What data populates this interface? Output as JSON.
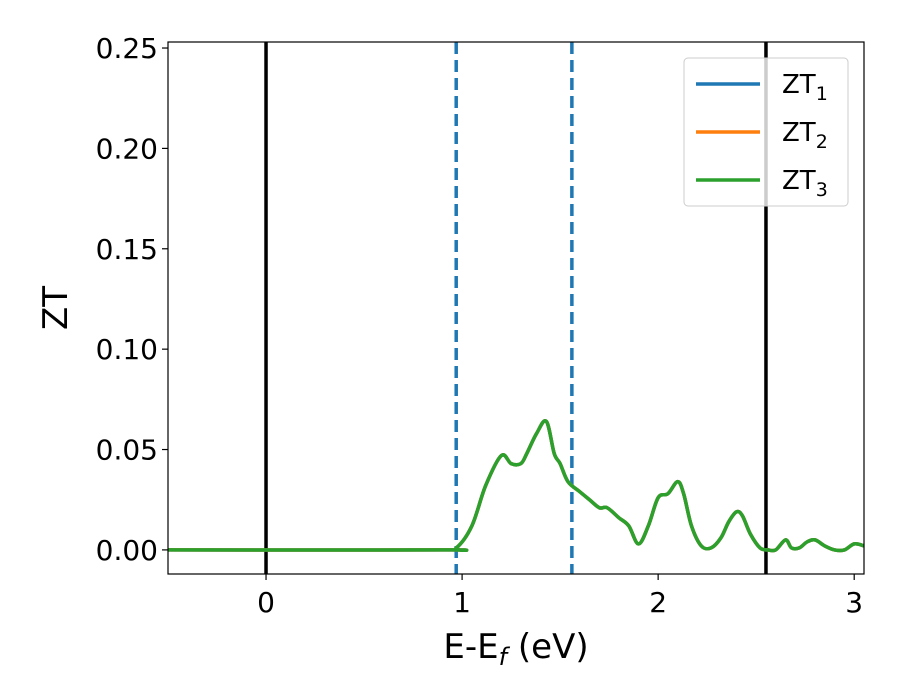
{
  "chart_data": {
    "type": "line",
    "title": "",
    "xlabel": {
      "main": "E-E",
      "sub": "f",
      "suffix": " (eV)"
    },
    "ylabel": "ZT",
    "xlim": [
      -0.5,
      3.05
    ],
    "ylim": [
      -0.012,
      0.253
    ],
    "x_ticks": [
      0,
      1,
      2,
      3
    ],
    "x_tick_labels": [
      "0",
      "1",
      "2",
      "3"
    ],
    "y_ticks": [
      0.0,
      0.05,
      0.1,
      0.15,
      0.2,
      0.25
    ],
    "y_tick_labels": [
      "0.00",
      "0.05",
      "0.10",
      "0.15",
      "0.20",
      "0.25"
    ],
    "grid": false,
    "legend_position": "top-right",
    "vertical_lines": [
      {
        "x": 0.0,
        "style": "solid",
        "color": "#000000"
      },
      {
        "x": 2.55,
        "style": "solid",
        "color": "#000000"
      },
      {
        "x": 0.97,
        "style": "dashed",
        "color": "#1f77b4"
      },
      {
        "x": 1.56,
        "style": "dashed",
        "color": "#1f77b4"
      }
    ],
    "series": [
      {
        "name": "ZT",
        "name_sub": "1",
        "color": "#1f77b4",
        "x": [
          -0.5,
          0.9,
          0.97,
          1.05,
          1.12,
          1.2,
          1.25,
          1.3,
          1.33,
          1.38,
          1.43,
          1.47,
          1.5,
          1.54,
          1.6,
          1.65,
          1.7,
          1.74,
          1.8,
          1.85,
          1.9,
          1.95,
          2.0,
          2.05,
          2.1,
          2.13,
          2.17,
          2.22,
          2.27,
          2.32,
          2.36,
          2.4,
          2.43,
          2.47,
          2.52,
          2.56,
          2.6,
          2.65,
          2.68,
          2.72,
          2.76,
          2.8,
          2.85,
          2.9,
          2.95,
          3.0,
          3.05
        ],
        "y": [
          0.0,
          0.0,
          0.001,
          0.012,
          0.032,
          0.047,
          0.043,
          0.043,
          0.048,
          0.058,
          0.064,
          0.048,
          0.043,
          0.034,
          0.029,
          0.025,
          0.021,
          0.021,
          0.016,
          0.012,
          0.003,
          0.012,
          0.026,
          0.028,
          0.034,
          0.028,
          0.012,
          0.002,
          0.001,
          0.006,
          0.014,
          0.019,
          0.017,
          0.008,
          0.001,
          0.0,
          0.0,
          0.005,
          0.001,
          0.001,
          0.004,
          0.005,
          0.002,
          0.0,
          0.0,
          0.003,
          0.002
        ]
      },
      {
        "name": "ZT",
        "name_sub": "2",
        "color": "#ff7f0e",
        "x": [
          -0.5,
          0.9,
          0.97,
          1.05,
          1.12,
          1.2,
          1.25,
          1.3,
          1.33,
          1.38,
          1.43,
          1.47,
          1.5,
          1.54,
          1.6,
          1.65,
          1.7,
          1.74,
          1.8,
          1.85,
          1.9,
          1.95,
          2.0,
          2.05,
          2.1,
          2.13,
          2.17,
          2.22,
          2.27,
          2.32,
          2.36,
          2.4,
          2.43,
          2.47,
          2.52,
          2.56,
          2.6,
          2.65,
          2.68,
          2.72,
          2.76,
          2.8,
          2.85,
          2.9,
          2.95,
          3.0,
          3.05
        ],
        "y": [
          0.0,
          0.0,
          0.001,
          0.012,
          0.032,
          0.047,
          0.043,
          0.043,
          0.048,
          0.058,
          0.064,
          0.048,
          0.043,
          0.034,
          0.029,
          0.025,
          0.021,
          0.021,
          0.016,
          0.012,
          0.003,
          0.012,
          0.026,
          0.028,
          0.034,
          0.028,
          0.012,
          0.002,
          0.001,
          0.006,
          0.014,
          0.019,
          0.017,
          0.008,
          0.001,
          0.0,
          0.0,
          0.005,
          0.001,
          0.001,
          0.004,
          0.005,
          0.002,
          0.0,
          0.0,
          0.003,
          0.002
        ]
      },
      {
        "name": "ZT",
        "name_sub": "3",
        "color": "#2ca02c",
        "x": [
          -0.5,
          0.9,
          0.97,
          1.05,
          1.12,
          1.2,
          1.25,
          1.3,
          1.33,
          1.38,
          1.43,
          1.47,
          1.5,
          1.54,
          1.6,
          1.65,
          1.7,
          1.74,
          1.8,
          1.85,
          1.9,
          1.95,
          2.0,
          2.05,
          2.1,
          2.13,
          2.17,
          2.22,
          2.27,
          2.32,
          2.36,
          2.4,
          2.43,
          2.47,
          2.52,
          2.56,
          2.6,
          2.65,
          2.68,
          2.72,
          2.76,
          2.8,
          2.85,
          2.9,
          2.95,
          3.0,
          3.05
        ],
        "y": [
          0.0,
          0.0,
          0.001,
          0.012,
          0.032,
          0.047,
          0.043,
          0.043,
          0.048,
          0.058,
          0.064,
          0.048,
          0.043,
          0.034,
          0.029,
          0.025,
          0.021,
          0.021,
          0.016,
          0.012,
          0.003,
          0.012,
          0.026,
          0.028,
          0.034,
          0.028,
          0.012,
          0.002,
          0.001,
          0.006,
          0.014,
          0.019,
          0.017,
          0.008,
          0.001,
          0.0,
          0.0,
          0.005,
          0.001,
          0.001,
          0.004,
          0.005,
          0.002,
          0.0,
          0.0,
          0.003,
          0.002
        ]
      }
    ]
  }
}
